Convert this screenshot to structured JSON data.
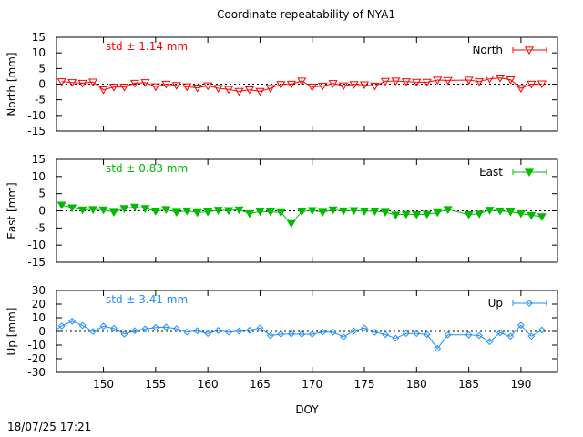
{
  "title": "Coordinate repeatability of NYA1",
  "timestamp": "18/07/25 17:21",
  "chart_data": [
    {
      "type": "line",
      "panel": "north",
      "ylabel": "North [mm]",
      "xlabel": "",
      "ylim": [
        -15,
        15
      ],
      "yticks": [
        15,
        10,
        5,
        0,
        -5,
        -10,
        -15
      ],
      "xlim": [
        145.5,
        193.5
      ],
      "xticks": [
        150,
        155,
        160,
        165,
        170,
        175,
        180,
        185,
        190
      ],
      "show_xtick_labels": false,
      "std_label": "std ± 1.14 mm",
      "color": "#ff0000",
      "marker": "triangle-down-open",
      "legend": "top-right",
      "series": [
        {
          "name": "North",
          "x": [
            146,
            147,
            148,
            149,
            150,
            151,
            152,
            153,
            154,
            155,
            156,
            157,
            158,
            159,
            160,
            161,
            162,
            163,
            164,
            165,
            166,
            167,
            168,
            169,
            170,
            171,
            172,
            173,
            174,
            175,
            176,
            177,
            178,
            179,
            180,
            181,
            182,
            183,
            185,
            186,
            187,
            188,
            189,
            190,
            191,
            192
          ],
          "y": [
            0.8,
            0.5,
            0.3,
            0.7,
            -1.8,
            -0.9,
            -0.9,
            0.3,
            0.5,
            -0.8,
            0.0,
            -0.4,
            -0.8,
            -1.2,
            -0.5,
            -1.3,
            -1.7,
            -2.3,
            -1.8,
            -2.3,
            -1.3,
            -0.1,
            0.0,
            1.0,
            -0.9,
            -0.6,
            0.2,
            -0.5,
            -0.1,
            -0.2,
            -0.6,
            0.9,
            1.0,
            0.8,
            0.6,
            0.6,
            1.3,
            1.2,
            1.3,
            0.8,
            1.7,
            2.0,
            1.4,
            -1.3,
            0.0,
            0.1
          ]
        }
      ]
    },
    {
      "type": "line",
      "panel": "east",
      "ylabel": "East [mm]",
      "xlabel": "",
      "ylim": [
        -15,
        15
      ],
      "yticks": [
        15,
        10,
        5,
        0,
        -5,
        -10,
        -15
      ],
      "xlim": [
        145.5,
        193.5
      ],
      "xticks": [
        150,
        155,
        160,
        165,
        170,
        175,
        180,
        185,
        190
      ],
      "show_xtick_labels": false,
      "std_label": "std ± 0.83 mm",
      "color": "#00bb00",
      "marker": "triangle-down-filled",
      "legend": "top-right",
      "series": [
        {
          "name": "East",
          "x": [
            146,
            147,
            148,
            149,
            150,
            151,
            152,
            153,
            154,
            155,
            156,
            157,
            158,
            159,
            160,
            161,
            162,
            163,
            164,
            165,
            166,
            167,
            168,
            169,
            170,
            171,
            172,
            173,
            174,
            175,
            176,
            177,
            178,
            179,
            180,
            181,
            182,
            183,
            185,
            186,
            187,
            188,
            189,
            190,
            191,
            192
          ],
          "y": [
            1.7,
            0.9,
            0.3,
            0.4,
            0.3,
            -0.4,
            0.7,
            1.1,
            0.7,
            -0.1,
            0.4,
            -0.4,
            0.0,
            -0.5,
            -0.3,
            0.2,
            0.1,
            0.3,
            -0.8,
            -0.2,
            -0.3,
            -0.5,
            -3.7,
            -0.2,
            0.1,
            -0.4,
            0.3,
            0.0,
            0.1,
            -0.1,
            -0.1,
            -0.4,
            -1.2,
            -1.0,
            -1.1,
            -1.0,
            -0.5,
            0.4,
            -1.1,
            -0.9,
            0.2,
            0.0,
            -0.3,
            -0.8,
            -1.3,
            -1.7
          ]
        }
      ]
    },
    {
      "type": "line",
      "panel": "up",
      "ylabel": "Up [mm]",
      "xlabel": "DOY",
      "ylim": [
        -30,
        30
      ],
      "yticks": [
        30,
        20,
        10,
        0,
        -10,
        -20,
        -30
      ],
      "xlim": [
        145.5,
        193.5
      ],
      "xticks": [
        150,
        155,
        160,
        165,
        170,
        175,
        180,
        185,
        190
      ],
      "show_xtick_labels": true,
      "std_label": "std ± 3.41 mm",
      "color": "#1e90ff",
      "marker": "diamond-open",
      "legend": "top-right",
      "series": [
        {
          "name": "Up",
          "x": [
            145.5,
            146,
            147,
            148,
            149,
            150,
            151,
            152,
            153,
            154,
            155,
            156,
            157,
            158,
            159,
            160,
            161,
            162,
            163,
            164,
            165,
            166,
            167,
            168,
            169,
            170,
            171,
            172,
            173,
            174,
            175,
            176,
            177,
            178,
            179,
            180,
            181,
            182,
            183,
            185,
            186,
            187,
            188,
            189,
            190,
            191,
            192
          ],
          "y": [
            1.5,
            4.0,
            7.5,
            4.3,
            0.0,
            3.8,
            2.2,
            -2.0,
            0.5,
            1.8,
            2.8,
            3.2,
            2.0,
            -0.5,
            0.5,
            -1.5,
            0.7,
            -0.5,
            0.3,
            0.8,
            2.5,
            -3.0,
            -2.0,
            -1.8,
            -2.0,
            -2.0,
            -0.5,
            -0.5,
            -4.0,
            0.4,
            2.4,
            -0.6,
            -2.3,
            -5.0,
            -1.5,
            -1.5,
            -2.3,
            -12.5,
            -2.5,
            -2.5,
            -3.0,
            -7.5,
            -1.0,
            -3.5,
            4.5,
            -3.5,
            1.0
          ]
        }
      ]
    }
  ]
}
